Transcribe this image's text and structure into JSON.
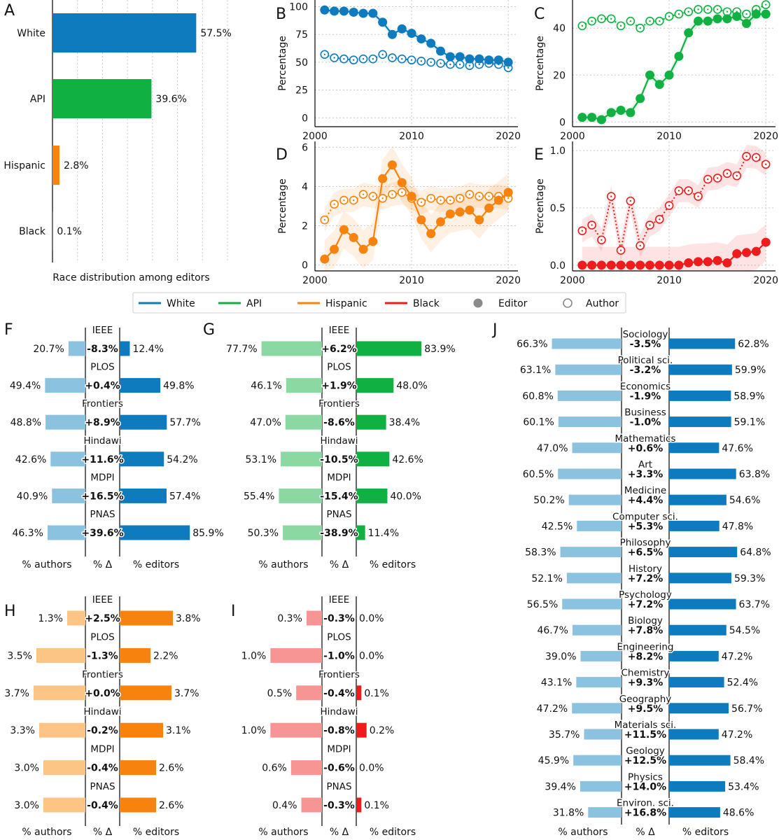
{
  "figure": {
    "legend": {
      "items": [
        {
          "label": "White",
          "color": "#0e7bbf",
          "kind": "line"
        },
        {
          "label": "API",
          "color": "#10b043",
          "kind": "line"
        },
        {
          "label": "Hispanic",
          "color": "#f7820e",
          "kind": "line"
        },
        {
          "label": "Black",
          "color": "#ee1c1c",
          "kind": "line"
        },
        {
          "label": "Editor",
          "color": "#8a8a8a",
          "kind": "filled"
        },
        {
          "label": "Author",
          "color": "#8a8a8a",
          "kind": "open"
        }
      ]
    },
    "colors": {
      "white": "#0e7bbf",
      "white_light": "#8bc2e0",
      "api": "#10b043",
      "api_light": "#8bd8a3",
      "hispanic": "#f7820e",
      "hispanic_light": "#fcc585",
      "black": "#ee1c1c",
      "black_light": "#f79494"
    }
  },
  "chart_data": [
    {
      "panel": "A",
      "type": "bar",
      "orientation": "horizontal",
      "categories": [
        "White",
        "API",
        "Hispanic",
        "Black"
      ],
      "values": [
        57.5,
        39.6,
        2.8,
        0.1
      ],
      "value_labels": [
        "57.5%",
        "39.6%",
        "2.8%",
        "0.1%"
      ],
      "colors": [
        "#0e7bbf",
        "#10b043",
        "#f7820e",
        "#ee1c1c"
      ],
      "xlabel": "Race distribution among editors",
      "xlim": [
        0,
        70
      ],
      "grid": true
    },
    {
      "panel": "B",
      "type": "line",
      "ylabel": "Percentage",
      "color": "#0e7bbf",
      "xlim": [
        2000,
        2021
      ],
      "ylim": [
        -8,
        106
      ],
      "xticks": [
        2000,
        2010,
        2020
      ],
      "yticks": [
        0,
        25,
        50,
        75,
        100
      ],
      "x": [
        2001,
        2002,
        2003,
        2004,
        2005,
        2006,
        2007,
        2008,
        2009,
        2010,
        2011,
        2012,
        2013,
        2014,
        2015,
        2016,
        2017,
        2018,
        2019,
        2020
      ],
      "series": [
        {
          "name": "Editor",
          "values": [
            97,
            96,
            96,
            95,
            94,
            94,
            86,
            75,
            80,
            76,
            71,
            67,
            60,
            55,
            55,
            53,
            53,
            52,
            52,
            50
          ]
        },
        {
          "name": "Author",
          "values": [
            57,
            54,
            53,
            52,
            53,
            53,
            57,
            54,
            53,
            52,
            51,
            50,
            49,
            48,
            48,
            47,
            48,
            49,
            48,
            45
          ]
        }
      ],
      "band": 2
    },
    {
      "panel": "C",
      "type": "line",
      "ylabel": "Percentage",
      "color": "#10b043",
      "xlim": [
        2000,
        2021
      ],
      "ylim": [
        -2,
        52
      ],
      "xticks": [
        2000,
        2010,
        2020
      ],
      "yticks": [
        0,
        20,
        40
      ],
      "x": [
        2001,
        2002,
        2003,
        2004,
        2005,
        2006,
        2007,
        2008,
        2009,
        2010,
        2011,
        2012,
        2013,
        2014,
        2015,
        2016,
        2017,
        2018,
        2019,
        2020
      ],
      "series": [
        {
          "name": "Editor",
          "values": [
            2,
            2,
            1,
            4,
            5,
            4,
            10,
            20,
            16,
            20,
            28,
            38,
            43,
            43,
            44,
            44,
            45,
            42,
            46,
            46
          ]
        },
        {
          "name": "Author",
          "values": [
            41,
            43,
            44,
            44,
            41,
            43,
            40,
            43,
            43,
            45,
            46,
            47,
            48,
            48,
            48,
            47,
            47,
            46,
            48,
            50
          ]
        }
      ],
      "band": 1.2
    },
    {
      "panel": "D",
      "type": "line",
      "ylabel": "Percentage",
      "color": "#f7820e",
      "xlim": [
        2000,
        2021
      ],
      "ylim": [
        -0.3,
        6.3
      ],
      "xticks": [
        2000,
        2010,
        2020
      ],
      "yticks": [
        0,
        2,
        4,
        6
      ],
      "x": [
        2001,
        2002,
        2003,
        2004,
        2005,
        2006,
        2007,
        2008,
        2009,
        2010,
        2011,
        2012,
        2013,
        2014,
        2015,
        2016,
        2017,
        2018,
        2019,
        2020
      ],
      "series": [
        {
          "name": "Editor",
          "values": [
            0.3,
            0.8,
            1.8,
            1.4,
            0.8,
            1.2,
            4.4,
            5.1,
            4.2,
            3.5,
            2.3,
            1.6,
            2.2,
            2.6,
            2.7,
            2.8,
            2.3,
            2.9,
            3.3,
            3.7
          ]
        },
        {
          "name": "Author",
          "values": [
            2.3,
            3.1,
            3.3,
            3.3,
            3.6,
            3.5,
            3.4,
            3.6,
            3.7,
            3.4,
            3.2,
            3.4,
            3.3,
            3.3,
            3.4,
            3.6,
            3.5,
            3.5,
            3.5,
            3.4
          ]
        }
      ],
      "band": 0.6
    },
    {
      "panel": "E",
      "type": "line",
      "ylabel": "Percentage",
      "color": "#ee1c1c",
      "xlim": [
        2000,
        2021
      ],
      "ylim": [
        -0.05,
        1.08
      ],
      "xticks": [
        2000,
        2010,
        2020
      ],
      "yticks": [
        0.0,
        0.5,
        1.0
      ],
      "x": [
        2001,
        2002,
        2003,
        2004,
        2005,
        2006,
        2007,
        2008,
        2009,
        2010,
        2011,
        2012,
        2013,
        2014,
        2015,
        2016,
        2017,
        2018,
        2019,
        2020
      ],
      "series": [
        {
          "name": "Editor",
          "values": [
            0,
            0,
            0,
            0,
            0,
            0,
            0,
            0,
            0,
            0,
            0,
            0.02,
            0.03,
            0.03,
            0.04,
            0.02,
            0.1,
            0.11,
            0.12,
            0.2
          ]
        },
        {
          "name": "Author",
          "values": [
            0.3,
            0.35,
            0.22,
            0.6,
            0.13,
            0.56,
            0.17,
            0.35,
            0.4,
            0.52,
            0.65,
            0.65,
            0.6,
            0.75,
            0.76,
            0.8,
            0.78,
            0.95,
            0.94,
            0.88
          ]
        }
      ],
      "band": 0.1
    },
    {
      "panel": "F",
      "type": "diverging_bar",
      "color_dark": "#0e7bbf",
      "color_light": "#8bc2e0",
      "max": 90,
      "xlabels": [
        "% authors",
        "% Δ",
        "% editors"
      ],
      "rows": [
        {
          "label": "IEEE",
          "authors": 20.7,
          "authors_label": "20.7%",
          "delta": "-8.3%",
          "editors": 12.4,
          "editors_label": "12.4%"
        },
        {
          "label": "PLOS",
          "authors": 49.4,
          "authors_label": "49.4%",
          "delta": "+0.4%",
          "editors": 49.8,
          "editors_label": "49.8%"
        },
        {
          "label": "Frontiers",
          "authors": 48.8,
          "authors_label": "48.8%",
          "delta": "+8.9%",
          "editors": 57.7,
          "editors_label": "57.7%"
        },
        {
          "label": "Hindawi",
          "authors": 42.6,
          "authors_label": "42.6%",
          "delta": "+11.6%",
          "editors": 54.2,
          "editors_label": "54.2%"
        },
        {
          "label": "MDPI",
          "authors": 40.9,
          "authors_label": "40.9%",
          "delta": "+16.5%",
          "editors": 57.4,
          "editors_label": "57.4%"
        },
        {
          "label": "PNAS",
          "authors": 46.3,
          "authors_label": "46.3%",
          "delta": "+39.6%",
          "editors": 85.9,
          "editors_label": "85.9%"
        }
      ]
    },
    {
      "panel": "G",
      "type": "diverging_bar",
      "color_dark": "#10b043",
      "color_light": "#8bd8a3",
      "max": 90,
      "xlabels": [
        "% authors",
        "% Δ",
        "% editors"
      ],
      "rows": [
        {
          "label": "IEEE",
          "authors": 77.7,
          "authors_label": "77.7%",
          "delta": "+6.2%",
          "editors": 83.9,
          "editors_label": "83.9%"
        },
        {
          "label": "PLOS",
          "authors": 46.1,
          "authors_label": "46.1%",
          "delta": "+1.9%",
          "editors": 48.0,
          "editors_label": "48.0%"
        },
        {
          "label": "Frontiers",
          "authors": 47.0,
          "authors_label": "47.0%",
          "delta": "-8.6%",
          "editors": 38.4,
          "editors_label": "38.4%"
        },
        {
          "label": "Hindawi",
          "authors": 53.1,
          "authors_label": "53.1%",
          "delta": "-10.5%",
          "editors": 42.6,
          "editors_label": "42.6%"
        },
        {
          "label": "MDPI",
          "authors": 55.4,
          "authors_label": "55.4%",
          "delta": "-15.4%",
          "editors": 40.0,
          "editors_label": "40.0%"
        },
        {
          "label": "PNAS",
          "authors": 50.3,
          "authors_label": "50.3%",
          "delta": "-38.9%",
          "editors": 11.4,
          "editors_label": "11.4%"
        }
      ]
    },
    {
      "panel": "H",
      "type": "diverging_bar",
      "color_dark": "#f7820e",
      "color_light": "#fcc585",
      "max": 4,
      "xlabels": [
        "% authors",
        "% Δ",
        "% editors"
      ],
      "rows": [
        {
          "label": "IEEE",
          "authors": 1.3,
          "authors_label": "1.3%",
          "delta": "+2.5%",
          "editors": 3.8,
          "editors_label": "3.8%"
        },
        {
          "label": "PLOS",
          "authors": 3.5,
          "authors_label": "3.5%",
          "delta": "-1.3%",
          "editors": 2.2,
          "editors_label": "2.2%"
        },
        {
          "label": "Frontiers",
          "authors": 3.7,
          "authors_label": "3.7%",
          "delta": "+0.0%",
          "editors": 3.7,
          "editors_label": "3.7%"
        },
        {
          "label": "Hindawi",
          "authors": 3.3,
          "authors_label": "3.3%",
          "delta": "-0.2%",
          "editors": 3.1,
          "editors_label": "3.1%"
        },
        {
          "label": "MDPI",
          "authors": 3.0,
          "authors_label": "3.0%",
          "delta": "-0.4%",
          "editors": 2.6,
          "editors_label": "2.6%"
        },
        {
          "label": "PNAS",
          "authors": 3.0,
          "authors_label": "3.0%",
          "delta": "-0.4%",
          "editors": 2.6,
          "editors_label": "2.6%"
        }
      ]
    },
    {
      "panel": "I",
      "type": "diverging_bar",
      "color_dark": "#ee1c1c",
      "color_light": "#f79494",
      "max": 1.1,
      "xlabels": [
        "% authors",
        "% Δ",
        "% editors"
      ],
      "rows": [
        {
          "label": "IEEE",
          "authors": 0.3,
          "authors_label": "0.3%",
          "delta": "-0.3%",
          "editors": 0.0,
          "editors_label": "0.0%"
        },
        {
          "label": "PLOS",
          "authors": 1.0,
          "authors_label": "1.0%",
          "delta": "-1.0%",
          "editors": 0.0,
          "editors_label": "0.0%"
        },
        {
          "label": "Frontiers",
          "authors": 0.5,
          "authors_label": "0.5%",
          "delta": "-0.4%",
          "editors": 0.1,
          "editors_label": "0.1%"
        },
        {
          "label": "Hindawi",
          "authors": 1.0,
          "authors_label": "1.0%",
          "delta": "-0.8%",
          "editors": 0.2,
          "editors_label": "0.2%"
        },
        {
          "label": "MDPI",
          "authors": 0.6,
          "authors_label": "0.6%",
          "delta": "-0.6%",
          "editors": 0.0,
          "editors_label": "0.0%"
        },
        {
          "label": "PNAS",
          "authors": 0.4,
          "authors_label": "0.4%",
          "delta": "-0.3%",
          "editors": 0.1,
          "editors_label": "0.1%"
        }
      ]
    },
    {
      "panel": "J",
      "type": "diverging_bar",
      "color_dark": "#0e7bbf",
      "color_light": "#8bc2e0",
      "max": 70,
      "xlabels": [
        "% authors",
        "% Δ",
        "% editors"
      ],
      "rows": [
        {
          "label": "Sociology",
          "authors": 66.3,
          "authors_label": "66.3%",
          "delta": "-3.5%",
          "editors": 62.8,
          "editors_label": "62.8%"
        },
        {
          "label": "Political sci.",
          "authors": 63.1,
          "authors_label": "63.1%",
          "delta": "-3.2%",
          "editors": 59.9,
          "editors_label": "59.9%"
        },
        {
          "label": "Economics",
          "authors": 60.8,
          "authors_label": "60.8%",
          "delta": "-1.9%",
          "editors": 58.9,
          "editors_label": "58.9%"
        },
        {
          "label": "Business",
          "authors": 60.1,
          "authors_label": "60.1%",
          "delta": "-1.0%",
          "editors": 59.1,
          "editors_label": "59.1%"
        },
        {
          "label": "Mathematics",
          "authors": 47.0,
          "authors_label": "47.0%",
          "delta": "+0.6%",
          "editors": 47.6,
          "editors_label": "47.6%"
        },
        {
          "label": "Art",
          "authors": 60.5,
          "authors_label": "60.5%",
          "delta": "+3.3%",
          "editors": 63.8,
          "editors_label": "63.8%"
        },
        {
          "label": "Medicine",
          "authors": 50.2,
          "authors_label": "50.2%",
          "delta": "+4.4%",
          "editors": 54.6,
          "editors_label": "54.6%"
        },
        {
          "label": "Computer sci.",
          "authors": 42.5,
          "authors_label": "42.5%",
          "delta": "+5.3%",
          "editors": 47.8,
          "editors_label": "47.8%"
        },
        {
          "label": "Philosophy",
          "authors": 58.3,
          "authors_label": "58.3%",
          "delta": "+6.5%",
          "editors": 64.8,
          "editors_label": "64.8%"
        },
        {
          "label": "History",
          "authors": 52.1,
          "authors_label": "52.1%",
          "delta": "+7.2%",
          "editors": 59.3,
          "editors_label": "59.3%"
        },
        {
          "label": "Psychology",
          "authors": 56.5,
          "authors_label": "56.5%",
          "delta": "+7.2%",
          "editors": 63.7,
          "editors_label": "63.7%"
        },
        {
          "label": "Biology",
          "authors": 46.7,
          "authors_label": "46.7%",
          "delta": "+7.8%",
          "editors": 54.5,
          "editors_label": "54.5%"
        },
        {
          "label": "Engineering",
          "authors": 39.0,
          "authors_label": "39.0%",
          "delta": "+8.2%",
          "editors": 47.2,
          "editors_label": "47.2%"
        },
        {
          "label": "Chemistry",
          "authors": 43.1,
          "authors_label": "43.1%",
          "delta": "+9.3%",
          "editors": 52.4,
          "editors_label": "52.4%"
        },
        {
          "label": "Geography",
          "authors": 47.2,
          "authors_label": "47.2%",
          "delta": "+9.5%",
          "editors": 56.7,
          "editors_label": "56.7%"
        },
        {
          "label": "Materials sci.",
          "authors": 35.7,
          "authors_label": "35.7%",
          "delta": "+11.5%",
          "editors": 47.2,
          "editors_label": "47.2%"
        },
        {
          "label": "Geology",
          "authors": 45.9,
          "authors_label": "45.9%",
          "delta": "+12.5%",
          "editors": 58.4,
          "editors_label": "58.4%"
        },
        {
          "label": "Physics",
          "authors": 39.4,
          "authors_label": "39.4%",
          "delta": "+14.0%",
          "editors": 53.4,
          "editors_label": "53.4%"
        },
        {
          "label": "Environ. sci.",
          "authors": 31.8,
          "authors_label": "31.8%",
          "delta": "+16.8%",
          "editors": 48.6,
          "editors_label": "48.6%"
        }
      ]
    }
  ]
}
